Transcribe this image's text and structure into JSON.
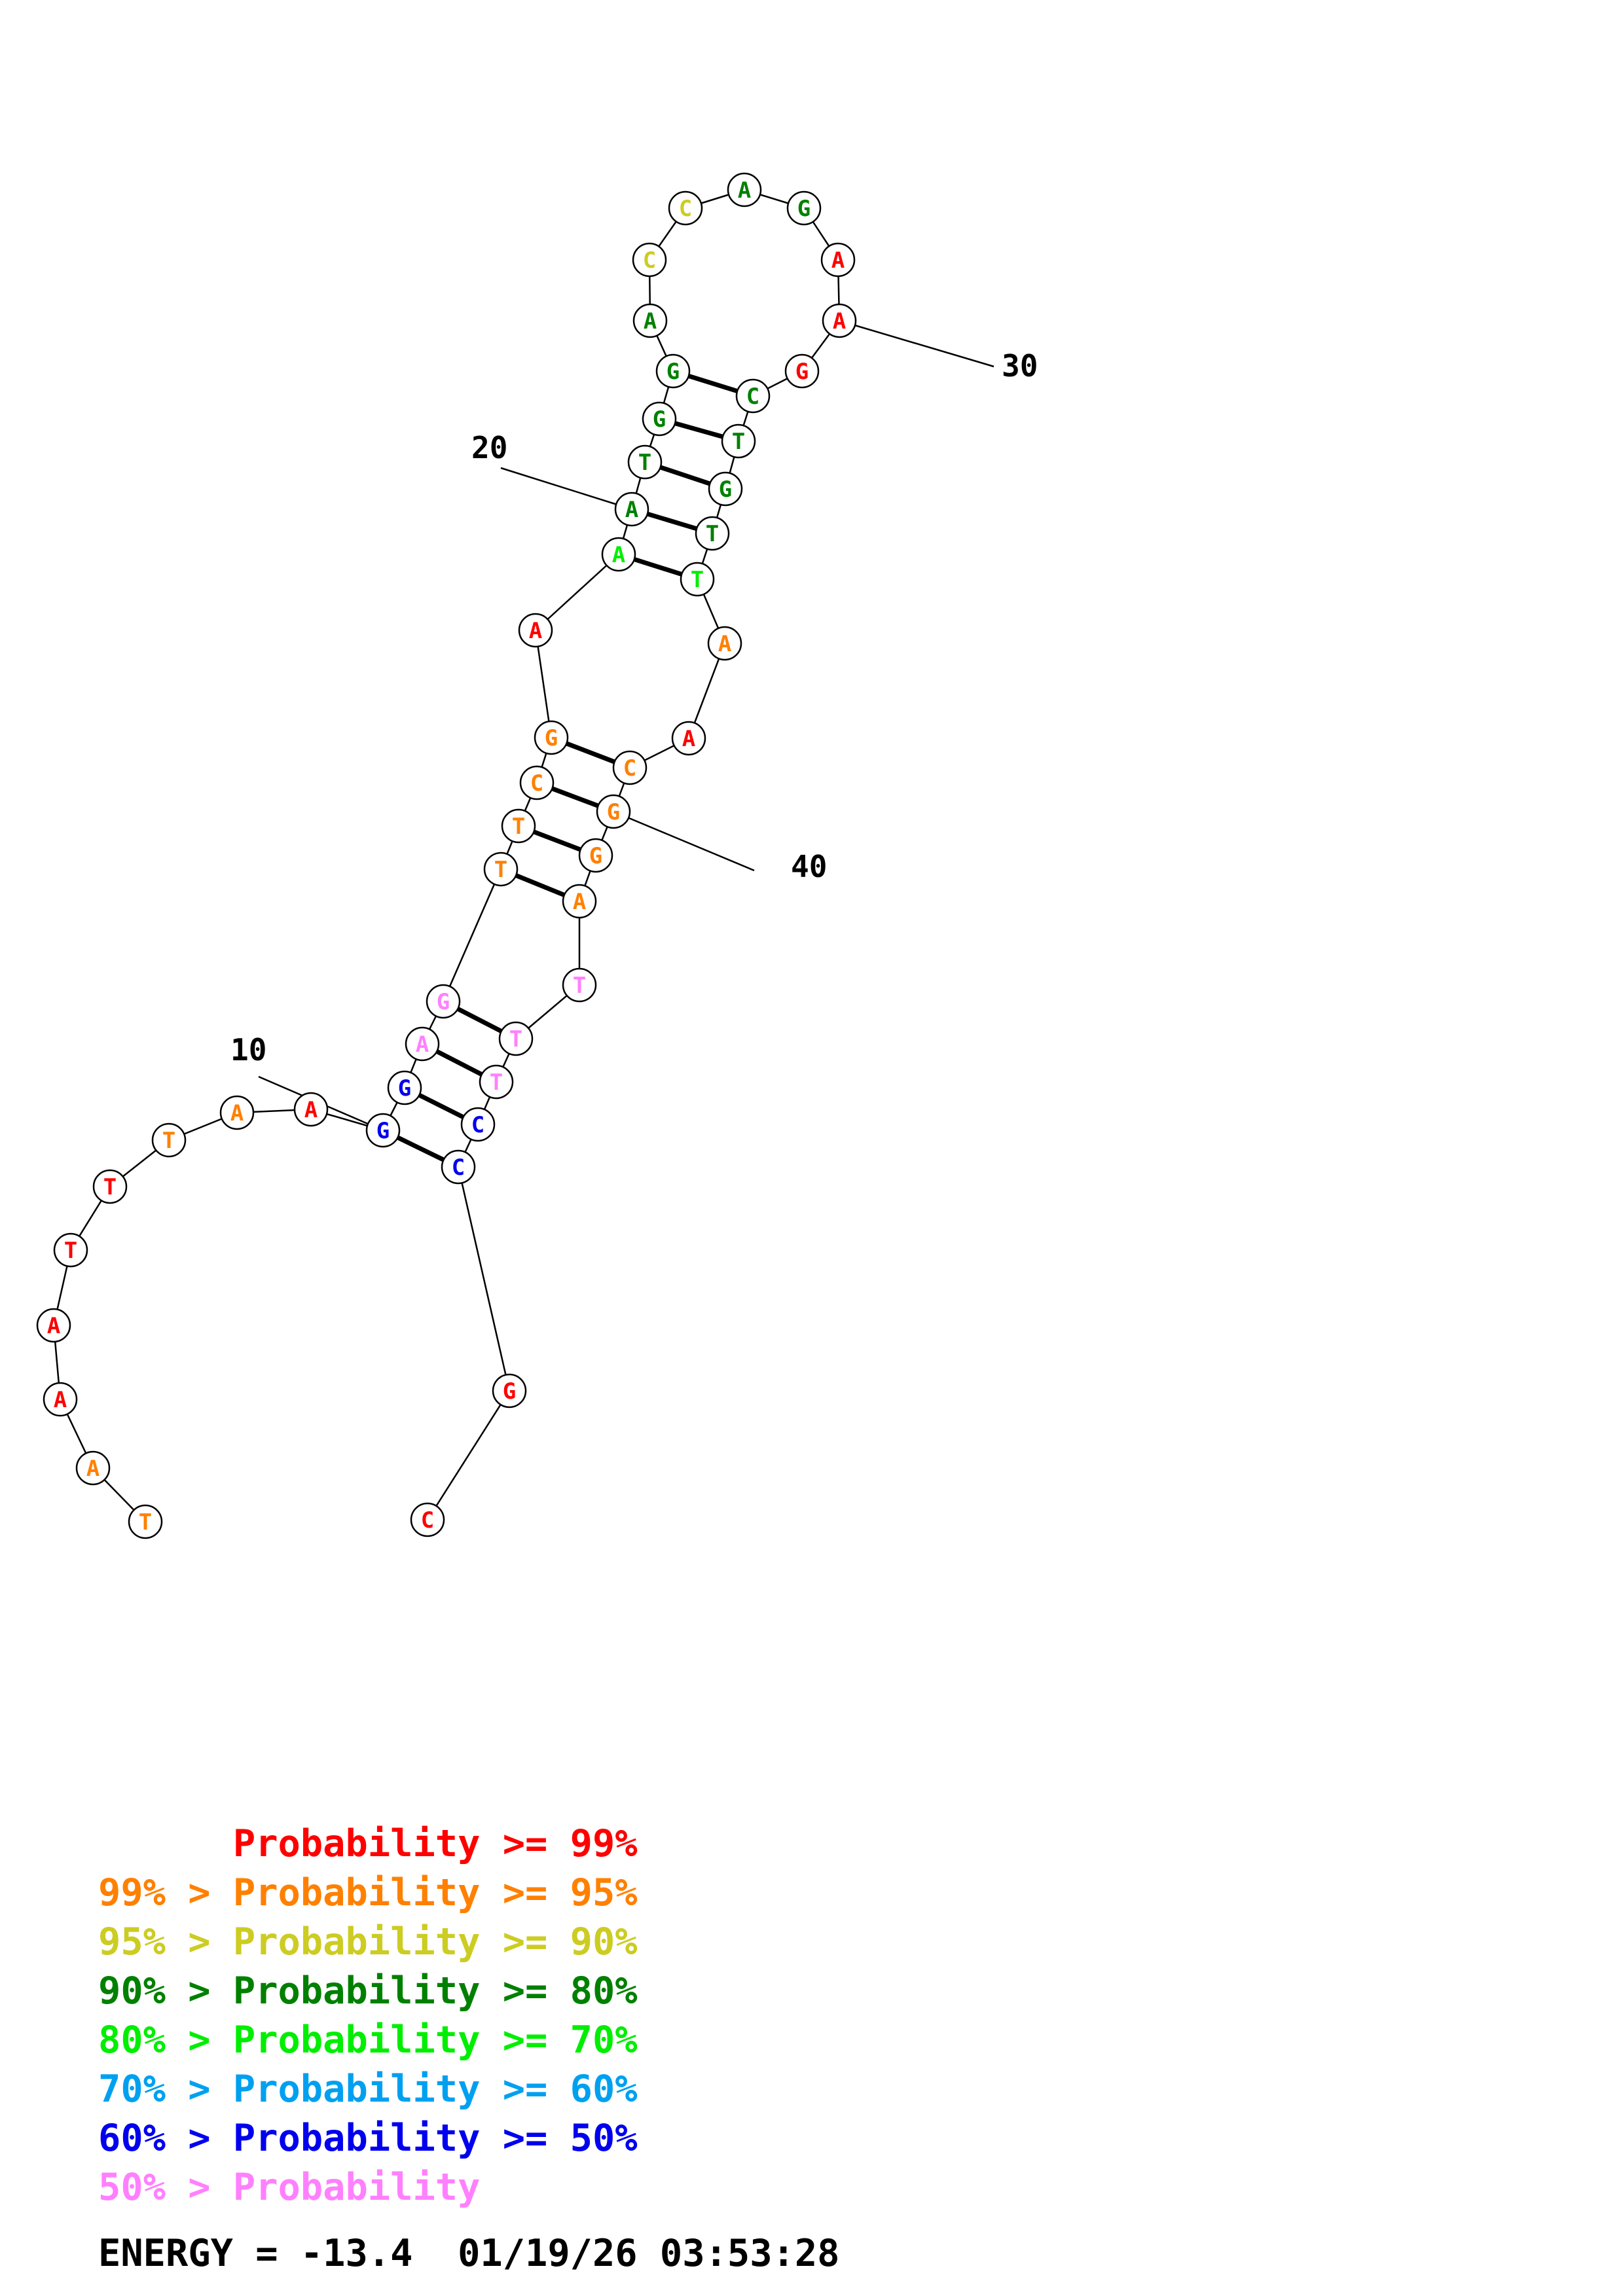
{
  "colors": {
    "p99": "#ff0000",
    "p95": "#ff8000",
    "p90": "#cccc22",
    "p80": "#008000",
    "p70": "#00ee00",
    "p60": "#00a0f0",
    "p50": "#0000ee",
    "plow": "#ff80ff"
  },
  "sequence": [
    {
      "n": 1,
      "b": "T",
      "c": "p95"
    },
    {
      "n": 2,
      "b": "A",
      "c": "p95"
    },
    {
      "n": 3,
      "b": "A",
      "c": "p99"
    },
    {
      "n": 4,
      "b": "A",
      "c": "p99"
    },
    {
      "n": 5,
      "b": "T",
      "c": "p99"
    },
    {
      "n": 6,
      "b": "T",
      "c": "p99"
    },
    {
      "n": 7,
      "b": "T",
      "c": "p95"
    },
    {
      "n": 8,
      "b": "A",
      "c": "p95"
    },
    {
      "n": 9,
      "b": "A",
      "c": "p99"
    },
    {
      "n": 10,
      "b": "G",
      "c": "p50"
    },
    {
      "n": 11,
      "b": "G",
      "c": "p50"
    },
    {
      "n": 12,
      "b": "A",
      "c": "plow"
    },
    {
      "n": 13,
      "b": "G",
      "c": "plow"
    },
    {
      "n": 14,
      "b": "T",
      "c": "p95"
    },
    {
      "n": 15,
      "b": "T",
      "c": "p95"
    },
    {
      "n": 16,
      "b": "C",
      "c": "p95"
    },
    {
      "n": 17,
      "b": "G",
      "c": "p95"
    },
    {
      "n": 18,
      "b": "A",
      "c": "p99"
    },
    {
      "n": 19,
      "b": "A",
      "c": "p70"
    },
    {
      "n": 20,
      "b": "A",
      "c": "p80"
    },
    {
      "n": 21,
      "b": "T",
      "c": "p80"
    },
    {
      "n": 22,
      "b": "G",
      "c": "p80"
    },
    {
      "n": 23,
      "b": "G",
      "c": "p80"
    },
    {
      "n": 24,
      "b": "A",
      "c": "p80"
    },
    {
      "n": 25,
      "b": "C",
      "c": "p90"
    },
    {
      "n": 26,
      "b": "C",
      "c": "p90"
    },
    {
      "n": 27,
      "b": "A",
      "c": "p80"
    },
    {
      "n": 28,
      "b": "G",
      "c": "p80"
    },
    {
      "n": 29,
      "b": "A",
      "c": "p99"
    },
    {
      "n": 30,
      "b": "A",
      "c": "p99"
    },
    {
      "n": 31,
      "b": "G",
      "c": "p99"
    },
    {
      "n": 32,
      "b": "C",
      "c": "p80"
    },
    {
      "n": 33,
      "b": "T",
      "c": "p80"
    },
    {
      "n": 34,
      "b": "G",
      "c": "p80"
    },
    {
      "n": 35,
      "b": "T",
      "c": "p80"
    },
    {
      "n": 36,
      "b": "T",
      "c": "p70"
    },
    {
      "n": 37,
      "b": "A",
      "c": "p95"
    },
    {
      "n": 38,
      "b": "A",
      "c": "p99"
    },
    {
      "n": 39,
      "b": "C",
      "c": "p95"
    },
    {
      "n": 40,
      "b": "G",
      "c": "p95"
    },
    {
      "n": 41,
      "b": "G",
      "c": "p95"
    },
    {
      "n": 42,
      "b": "A",
      "c": "p95"
    },
    {
      "n": 43,
      "b": "T",
      "c": "plow"
    },
    {
      "n": 44,
      "b": "T",
      "c": "plow"
    },
    {
      "n": 45,
      "b": "T",
      "c": "plow"
    },
    {
      "n": 46,
      "b": "C",
      "c": "p50"
    },
    {
      "n": 47,
      "b": "C",
      "c": "p50"
    },
    {
      "n": 48,
      "b": "G",
      "c": "p99"
    },
    {
      "n": 49,
      "b": "C",
      "c": "p99"
    }
  ],
  "pairs": [
    [
      10,
      47
    ],
    [
      11,
      46
    ],
    [
      12,
      45
    ],
    [
      13,
      44
    ],
    [
      14,
      42
    ],
    [
      15,
      41
    ],
    [
      16,
      40
    ],
    [
      17,
      39
    ],
    [
      19,
      36
    ],
    [
      20,
      35
    ],
    [
      21,
      34
    ],
    [
      22,
      33
    ],
    [
      23,
      32
    ]
  ],
  "position_labels": [
    {
      "n": 10,
      "text": "10"
    },
    {
      "n": 20,
      "text": "20"
    },
    {
      "n": 30,
      "text": "30"
    },
    {
      "n": 40,
      "text": "40"
    }
  ],
  "legend": [
    {
      "prefix": "",
      "label": "Probability",
      "suffix": ">= 99%",
      "c": "p99"
    },
    {
      "prefix": "99% > ",
      "label": "Probability",
      "suffix": ">= 95%",
      "c": "p95"
    },
    {
      "prefix": "95% > ",
      "label": "Probability",
      "suffix": ">= 90%",
      "c": "p90"
    },
    {
      "prefix": "90% > ",
      "label": "Probability",
      "suffix": ">= 80%",
      "c": "p80"
    },
    {
      "prefix": "80% > ",
      "label": "Probability",
      "suffix": ">= 70%",
      "c": "p70"
    },
    {
      "prefix": "70% > ",
      "label": "Probability",
      "suffix": ">= 60%",
      "c": "p60"
    },
    {
      "prefix": "60% > ",
      "label": "Probability",
      "suffix": ">= 50%",
      "c": "p50"
    },
    {
      "prefix": "50% > ",
      "label": "Probability",
      "suffix": "",
      "c": "plow"
    }
  ],
  "energy": {
    "label": "ENERGY = -13.4",
    "timestamp": "01/19/26 03:53:28"
  }
}
